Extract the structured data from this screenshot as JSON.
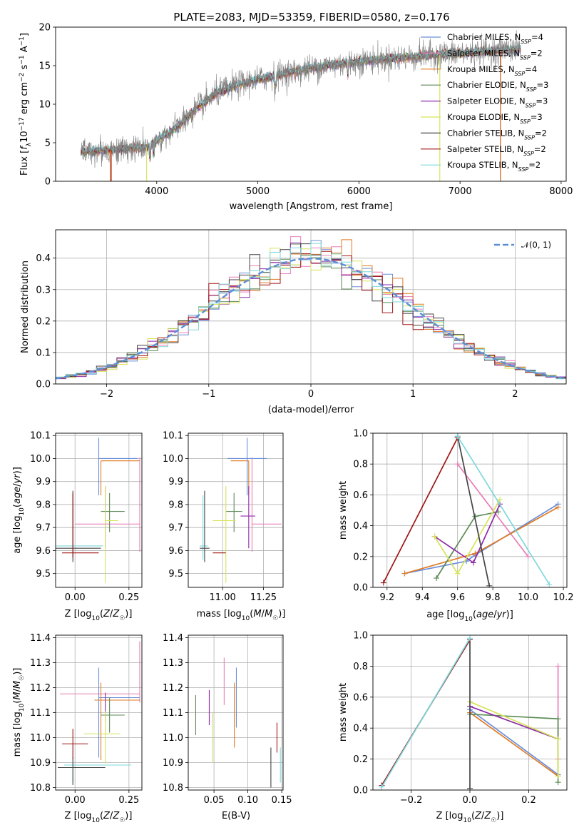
{
  "figure": {
    "title": "PLATE=2083, MJD=53359, FIBERID=0580, z=0.176"
  },
  "colors": {
    "Chabrier MILES": "#6a8fd8",
    "Salpeter MILES": "#e87fb7",
    "Kroupa MILES": "#e07a26",
    "Chabrier ELODIE": "#5b8a55",
    "Salpeter ELODIE": "#8e2aa8",
    "Kroupa ELODIE": "#d6e35a",
    "Chabrier STELIB": "#444444",
    "Salpeter STELIB": "#a01515",
    "Kroupa STELIB": "#7dd8dc",
    "data": "#808080"
  },
  "chart_data": [
    {
      "id": "spectrum",
      "type": "line",
      "title": "PLATE=2083, MJD=53359, FIBERID=0580, z=0.176",
      "xlabel": "wavelength [Angstrom, rest frame]",
      "ylabel": "Flux [f_λ 10^-17 erg cm^-2 s^-1 A^-1]",
      "xlim": [
        3000,
        8050
      ],
      "ylim": [
        0,
        20
      ],
      "xticks": [
        4000,
        5000,
        6000,
        7000,
        8000
      ],
      "yticks": [
        0,
        5,
        10,
        15,
        20
      ],
      "grid": false,
      "legend": "upper right",
      "continuum": {
        "x": [
          3250,
          3500,
          3700,
          3900,
          4000,
          4200,
          4400,
          4600,
          4800,
          5000,
          5200,
          5400,
          5600,
          5800,
          6000,
          6200,
          6400,
          6600,
          6800,
          7000,
          7200,
          7400,
          7600
        ],
        "y": [
          3.8,
          4.0,
          4.2,
          4.4,
          5.2,
          7.0,
          9.5,
          11.5,
          12.5,
          13.2,
          13.8,
          14.3,
          14.8,
          15.2,
          15.5,
          15.8,
          16.0,
          16.2,
          16.4,
          16.6,
          16.8,
          17.0,
          17.2
        ]
      },
      "series": [
        {
          "name": "Chabrier MILES",
          "nssp": "4"
        },
        {
          "name": "Salpeter MILES",
          "nssp": "2"
        },
        {
          "name": "Kroupa MILES",
          "nssp": "4"
        },
        {
          "name": "Chabrier ELODIE",
          "nssp": "3"
        },
        {
          "name": "Salpeter ELODIE",
          "nssp": "3"
        },
        {
          "name": "Kroupa ELODIE",
          "nssp": "3"
        },
        {
          "name": "Chabrier STELIB",
          "nssp": "2"
        },
        {
          "name": "Salpeter STELIB",
          "nssp": "2"
        },
        {
          "name": "Kroupa STELIB",
          "nssp": "2"
        }
      ],
      "spectral_edges": [
        {
          "series": "Salpeter STELIB",
          "x_from": 3550,
          "x_to": 7400
        },
        {
          "series": "Kroupa ELODIE",
          "x_from": 3900,
          "x_to": 6800
        },
        {
          "series": "Kroupa MILES",
          "x_from": 3540,
          "x_to": 7400
        }
      ]
    },
    {
      "id": "residuals",
      "type": "histogram",
      "xlabel": "(data-model)/error",
      "ylabel": "Normed distribution",
      "xlim": [
        -2.5,
        2.5
      ],
      "ylim": [
        0,
        0.49
      ],
      "xticks": [
        -2,
        -1,
        0,
        1,
        2
      ],
      "yticks": [
        0.0,
        0.1,
        0.2,
        0.3,
        0.4
      ],
      "grid": true,
      "legend": "upper right",
      "legend_label": "𝒩(0, 1)",
      "bin_width": 0.1,
      "reference_curve": "standard normal"
    },
    {
      "id": "age-vs-Z",
      "type": "errorbar",
      "xlabel": "Z [log10(Z/Z☉)]",
      "ylabel": "age  [log10(age/yr)]",
      "xlim": [
        -0.09,
        0.31
      ],
      "ylim": [
        9.44,
        10.11
      ],
      "xticks": [
        0.0,
        0.25
      ],
      "yticks": [
        9.5,
        9.6,
        9.7,
        9.8,
        9.9,
        10.0,
        10.1
      ],
      "grid": true,
      "points": [
        {
          "series": "Chabrier MILES",
          "x": 0.11,
          "xerr": [
            0.0,
            0.18
          ],
          "y": 10.0,
          "yerr": [
            0.16,
            0.09
          ]
        },
        {
          "series": "Kroupa MILES",
          "x": 0.12,
          "xerr": [
            0.0,
            0.18
          ],
          "y": 9.99,
          "yerr": [
            0.15,
            0.0
          ]
        },
        {
          "series": "Salpeter MILES",
          "x": 0.3,
          "xerr": [
            0.3,
            0.0
          ],
          "y": 9.715,
          "yerr": [
            0.12,
            0.29
          ]
        },
        {
          "series": "Chabrier ELODIE",
          "x": 0.16,
          "xerr": [
            0.04,
            0.07
          ],
          "y": 9.77,
          "yerr": [
            0.09,
            0.08
          ]
        },
        {
          "series": "Salpeter ELODIE",
          "x": 0.14,
          "xerr": [
            0.0,
            0.0
          ],
          "y": 9.75,
          "yerr": [
            0.14,
            0.13
          ]
        },
        {
          "series": "Kroupa ELODIE",
          "x": 0.14,
          "xerr": [
            0.0,
            0.06
          ],
          "y": 9.73,
          "yerr": [
            0.27,
            0.15
          ]
        },
        {
          "series": "Kroupa STELIB",
          "x": -0.01,
          "xerr": [
            0.09,
            0.14
          ],
          "y": 9.62,
          "yerr": [
            0.06,
            0.22
          ]
        },
        {
          "series": "Chabrier STELIB",
          "x": -0.01,
          "xerr": [
            0.08,
            0.13
          ],
          "y": 9.61,
          "yerr": [
            0.06,
            0.25
          ]
        },
        {
          "series": "Salpeter STELIB",
          "x": -0.01,
          "xerr": [
            0.05,
            0.12
          ],
          "y": 9.59,
          "yerr": [
            0.02,
            0.26
          ]
        }
      ]
    },
    {
      "id": "age-vs-mass",
      "type": "errorbar",
      "xlabel": "mass [log10(M/M☉)]",
      "ylabel": "",
      "xlim": [
        10.79,
        11.37
      ],
      "ylim": [
        9.44,
        10.11
      ],
      "xticks": [
        11.0,
        11.25
      ],
      "yticks": [
        9.5,
        9.6,
        9.7,
        9.8,
        9.9,
        10.0,
        10.1
      ],
      "grid": true,
      "points": [
        {
          "series": "Chabrier MILES",
          "x": 11.15,
          "xerr": [
            0.12,
            0.12
          ],
          "y": 10.0,
          "yerr": [
            0.16,
            0.09
          ]
        },
        {
          "series": "Kroupa MILES",
          "x": 11.16,
          "xerr": [
            0.11,
            0.0
          ],
          "y": 9.99,
          "yerr": [
            0.15,
            0.0
          ]
        },
        {
          "series": "Salpeter MILES",
          "x": 11.18,
          "xerr": [
            0.0,
            0.18
          ],
          "y": 9.715,
          "yerr": [
            0.12,
            0.29
          ]
        },
        {
          "series": "Chabrier ELODIE",
          "x": 11.07,
          "xerr": [
            0.05,
            0.05
          ],
          "y": 9.77,
          "yerr": [
            0.09,
            0.08
          ]
        },
        {
          "series": "Salpeter ELODIE",
          "x": 11.16,
          "xerr": [
            0.05,
            0.04
          ],
          "y": 9.75,
          "yerr": [
            0.14,
            0.13
          ]
        },
        {
          "series": "Kroupa ELODIE",
          "x": 11.02,
          "xerr": [
            0.08,
            0.06
          ],
          "y": 9.73,
          "yerr": [
            0.27,
            0.15
          ]
        },
        {
          "series": "Kroupa STELIB",
          "x": 10.88,
          "xerr": [
            0.02,
            0.03
          ],
          "y": 9.62,
          "yerr": [
            0.06,
            0.22
          ]
        },
        {
          "series": "Chabrier STELIB",
          "x": 10.89,
          "xerr": [
            0.03,
            0.03
          ],
          "y": 9.61,
          "yerr": [
            0.06,
            0.25
          ]
        },
        {
          "series": "Salpeter STELIB",
          "x": 10.98,
          "xerr": [
            0.04,
            0.04
          ],
          "y": 9.59,
          "yerr": [
            0.0,
            0.0
          ]
        }
      ]
    },
    {
      "id": "weight-vs-age",
      "type": "line",
      "xlabel": "age  [log10(age/yr)]",
      "ylabel": "mass weight",
      "xlim": [
        9.12,
        10.22
      ],
      "ylim": [
        0.0,
        1.0
      ],
      "xticks": [
        9.2,
        9.4,
        9.6,
        9.8,
        10.0,
        10.2
      ],
      "yticks": [
        0.0,
        0.2,
        0.4,
        0.6,
        0.8,
        1.0
      ],
      "grid": true,
      "series": [
        {
          "name": "Chabrier MILES",
          "x": [
            9.3,
            9.65,
            9.7,
            10.17
          ],
          "y": [
            0.09,
            0.17,
            0.21,
            0.54
          ]
        },
        {
          "name": "Salpeter MILES",
          "x": [
            9.6,
            10.0
          ],
          "y": [
            0.8,
            0.2
          ]
        },
        {
          "name": "Kroupa MILES",
          "x": [
            9.3,
            9.7,
            10.17
          ],
          "y": [
            0.09,
            0.22,
            0.52
          ]
        },
        {
          "name": "Chabrier ELODIE",
          "x": [
            9.48,
            9.7,
            9.83
          ],
          "y": [
            0.06,
            0.46,
            0.49
          ]
        },
        {
          "name": "Salpeter ELODIE",
          "x": [
            9.47,
            9.69,
            9.84
          ],
          "y": [
            0.33,
            0.16,
            0.54
          ]
        },
        {
          "name": "Kroupa ELODIE",
          "x": [
            9.47,
            9.6,
            9.84
          ],
          "y": [
            0.33,
            0.09,
            0.57
          ]
        },
        {
          "name": "Chabrier STELIB",
          "x": [
            9.6,
            9.78
          ],
          "y": [
            0.98,
            0.01
          ]
        },
        {
          "name": "Salpeter STELIB",
          "x": [
            9.18,
            9.6
          ],
          "y": [
            0.03,
            0.97
          ]
        },
        {
          "name": "Kroupa STELIB",
          "x": [
            9.6,
            10.12
          ],
          "y": [
            0.98,
            0.02
          ]
        }
      ]
    },
    {
      "id": "mass-vs-Z",
      "type": "errorbar",
      "xlabel": "Z [log10(Z/Z☉)]",
      "ylabel": "mass [log10(M/M☉)]",
      "xlim": [
        -0.09,
        0.31
      ],
      "ylim": [
        10.79,
        11.41
      ],
      "xticks": [
        0.0,
        0.25
      ],
      "yticks": [
        10.8,
        10.9,
        11.0,
        11.1,
        11.2,
        11.3,
        11.4
      ],
      "grid": true,
      "points": [
        {
          "series": "Chabrier MILES",
          "x": 0.11,
          "xerr": [
            0.0,
            0.19
          ],
          "y": 11.16,
          "yerr": [
            0.24,
            0.12
          ]
        },
        {
          "series": "Salpeter MILES",
          "x": 0.3,
          "xerr": [
            0.37,
            0.0
          ],
          "y": 11.175,
          "yerr": [
            0.035,
            0.21
          ]
        },
        {
          "series": "Kroupa MILES",
          "x": 0.12,
          "xerr": [
            0.03,
            0.18
          ],
          "y": 11.15,
          "yerr": [
            0.24,
            0.07
          ]
        },
        {
          "series": "Chabrier ELODIE",
          "x": 0.16,
          "xerr": [
            0.04,
            0.07
          ],
          "y": 11.09,
          "yerr": [
            0.07,
            0.07
          ]
        },
        {
          "series": "Salpeter ELODIE",
          "x": 0.14,
          "xerr": [
            0.0,
            0.0
          ],
          "y": 11.12,
          "yerr": [
            0.06,
            0.06
          ]
        },
        {
          "series": "Kroupa ELODIE",
          "x": 0.14,
          "xerr": [
            0.1,
            0.07
          ],
          "y": 11.015,
          "yerr": [
            0.12,
            0.09
          ]
        },
        {
          "series": "Kroupa STELIB",
          "x": -0.01,
          "xerr": [
            0.04,
            0.27
          ],
          "y": 10.89,
          "yerr": [
            0.07,
            0.08
          ]
        },
        {
          "series": "Chabrier STELIB",
          "x": -0.01,
          "xerr": [
            0.07,
            0.15
          ],
          "y": 10.88,
          "yerr": [
            0.07,
            0.04
          ]
        },
        {
          "series": "Salpeter STELIB",
          "x": -0.01,
          "xerr": [
            0.05,
            0.07
          ],
          "y": 10.975,
          "yerr": [
            0.06,
            0.06
          ]
        }
      ]
    },
    {
      "id": "mass-vs-ebv",
      "type": "errorbar",
      "xlabel": "E(B-V)",
      "ylabel": "",
      "xlim": [
        0.012,
        0.152
      ],
      "ylim": [
        10.79,
        11.41
      ],
      "xticks": [
        0.05,
        0.1,
        0.15
      ],
      "yticks": [
        10.8,
        10.9,
        11.0,
        11.1,
        11.2,
        11.3,
        11.4
      ],
      "grid": true,
      "points": [
        {
          "series": "Chabrier ELODIE",
          "x": 0.023,
          "xerr": [
            0.0,
            0.0
          ],
          "y": 11.09,
          "yerr": [
            0.08,
            0.08
          ]
        },
        {
          "series": "Salpeter ELODIE",
          "x": 0.043,
          "xerr": [
            0.0,
            0.0
          ],
          "y": 11.12,
          "yerr": [
            0.07,
            0.07
          ]
        },
        {
          "series": "Kroupa ELODIE",
          "x": 0.048,
          "xerr": [
            0.0,
            0.0
          ],
          "y": 11.0,
          "yerr": [
            0.1,
            0.1
          ]
        },
        {
          "series": "Salpeter MILES",
          "x": 0.065,
          "xerr": [
            0.0,
            0.0
          ],
          "y": 11.225,
          "yerr": [
            0.095,
            0.095
          ]
        },
        {
          "series": "Kroupa MILES",
          "x": 0.08,
          "xerr": [
            0.0,
            0.0
          ],
          "y": 11.09,
          "yerr": [
            0.13,
            0.13
          ]
        },
        {
          "series": "Chabrier MILES",
          "x": 0.083,
          "xerr": [
            0.0,
            0.0
          ],
          "y": 11.16,
          "yerr": [
            0.12,
            0.12
          ]
        },
        {
          "series": "Chabrier STELIB",
          "x": 0.134,
          "xerr": [
            0.0,
            0.0
          ],
          "y": 10.88,
          "yerr": [
            0.08,
            0.08
          ]
        },
        {
          "series": "Salpeter STELIB",
          "x": 0.143,
          "xerr": [
            0.0,
            0.0
          ],
          "y": 11.0,
          "yerr": [
            0.06,
            0.06
          ]
        },
        {
          "series": "Kroupa STELIB",
          "x": 0.148,
          "xerr": [
            0.0,
            0.0
          ],
          "y": 10.89,
          "yerr": [
            0.07,
            0.07
          ]
        }
      ]
    },
    {
      "id": "weight-vs-Z",
      "type": "line",
      "xlabel": "Z [log10(Z/Z☉)]",
      "ylabel": "mass weight",
      "xlim": [
        -0.33,
        0.33
      ],
      "ylim": [
        0.0,
        1.0
      ],
      "xticks": [
        -0.2,
        0.0,
        0.2
      ],
      "yticks": [
        0.0,
        0.2,
        0.4,
        0.6,
        0.8,
        1.0
      ],
      "grid": true,
      "series": [
        {
          "name": "Chabrier MILES",
          "x": [
            0.0,
            0.3
          ],
          "y": [
            0.52,
            0.1
          ]
        },
        {
          "name": "Salpeter MILES",
          "x": [
            0.3,
            0.3
          ],
          "y": [
            0.2,
            0.8
          ]
        },
        {
          "name": "Kroupa MILES",
          "x": [
            0.0,
            0.3
          ],
          "y": [
            0.5,
            0.09
          ]
        },
        {
          "name": "Chabrier ELODIE",
          "x": [
            0.0,
            0.3,
            0.3
          ],
          "y": [
            0.49,
            0.46,
            0.05
          ]
        },
        {
          "name": "Salpeter ELODIE",
          "x": [
            0.0,
            0.3
          ],
          "y": [
            0.54,
            0.33
          ]
        },
        {
          "name": "Kroupa ELODIE",
          "x": [
            0.0,
            0.3,
            0.3
          ],
          "y": [
            0.57,
            0.33,
            0.09
          ]
        },
        {
          "name": "Chabrier STELIB",
          "x": [
            -0.3,
            0.0,
            0.0
          ],
          "y": [
            0.03,
            0.97,
            0.01
          ]
        },
        {
          "name": "Salpeter STELIB",
          "x": [
            -0.3,
            0.0
          ],
          "y": [
            0.03,
            0.97
          ]
        },
        {
          "name": "Kroupa STELIB",
          "x": [
            -0.3,
            0.0
          ],
          "y": [
            0.02,
            0.98
          ]
        }
      ]
    }
  ]
}
